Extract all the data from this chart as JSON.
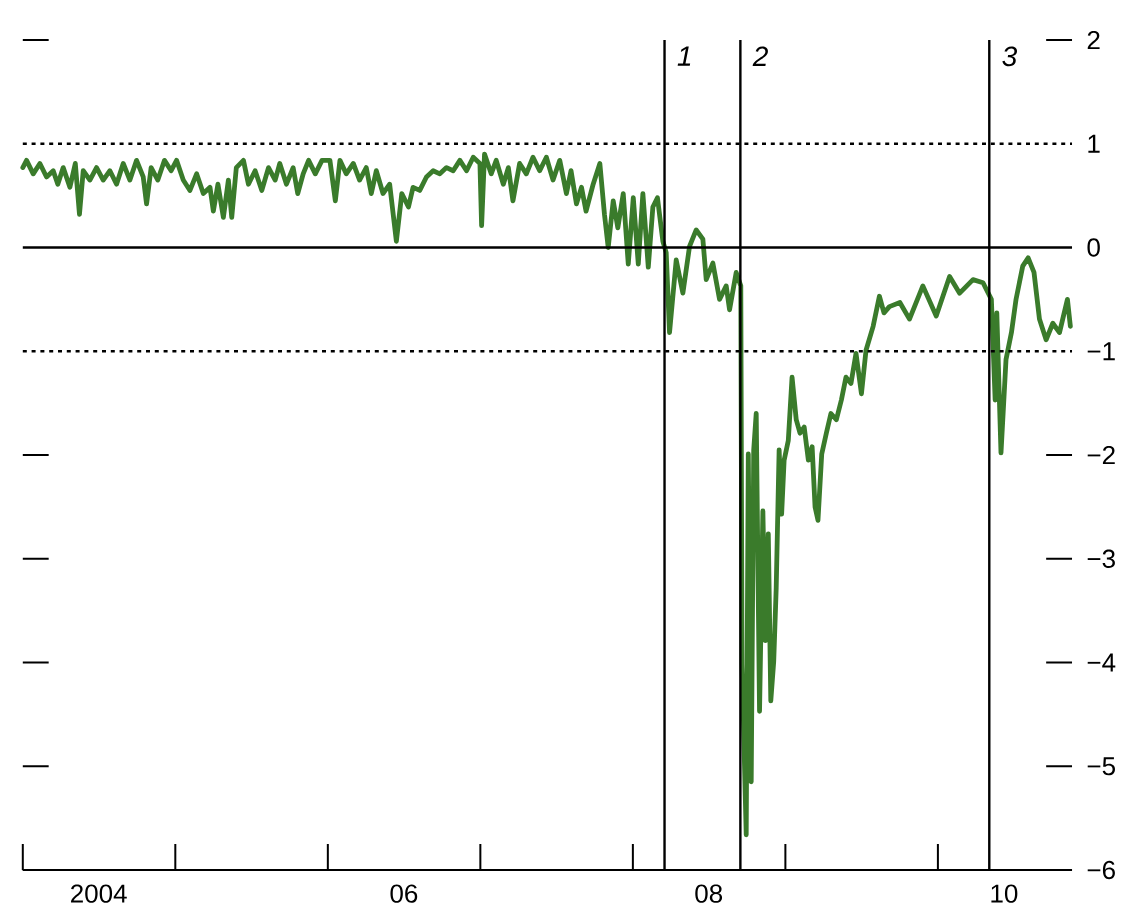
{
  "chart_data": {
    "type": "line",
    "color": "#3a7b2b",
    "x": [
      "2004-01-01",
      "2004-01-10",
      "2004-01-26",
      "2004-02-11",
      "2004-02-27",
      "2004-03-14",
      "2004-03-25",
      "2004-04-07",
      "2004-04-23",
      "2004-05-06",
      "2004-05-16",
      "2004-05-25",
      "2004-06-10",
      "2004-06-26",
      "2004-07-12",
      "2004-07-28",
      "2004-08-13",
      "2004-08-29",
      "2004-09-14",
      "2004-09-30",
      "2004-10-16",
      "2004-10-24",
      "2004-11-04",
      "2004-11-20",
      "2004-12-06",
      "2004-12-22",
      "2005-01-04",
      "2005-01-20",
      "2005-02-05",
      "2005-02-21",
      "2005-03-09",
      "2005-03-25",
      "2005-04-02",
      "2005-04-13",
      "2005-04-26",
      "2005-05-08",
      "2005-05-16",
      "2005-05-27",
      "2005-06-13",
      "2005-06-25",
      "2005-07-11",
      "2005-07-27",
      "2005-08-12",
      "2005-08-28",
      "2005-09-08",
      "2005-09-24",
      "2005-10-10",
      "2005-10-21",
      "2005-11-03",
      "2005-11-16",
      "2005-12-02",
      "2005-12-18",
      "2006-01-06",
      "2006-01-19",
      "2006-01-30",
      "2006-02-14",
      "2006-03-03",
      "2006-03-18",
      "2006-04-03",
      "2006-04-15",
      "2006-04-27",
      "2006-05-13",
      "2006-05-29",
      "2006-06-14",
      "2006-06-27",
      "2006-07-13",
      "2006-07-24",
      "2006-08-09",
      "2006-08-25",
      "2006-09-10",
      "2006-09-26",
      "2006-10-12",
      "2006-10-28",
      "2006-11-13",
      "2006-11-29",
      "2006-12-15",
      "2006-12-31",
      "2007-01-04",
      "2007-01-11",
      "2007-01-27",
      "2007-02-08",
      "2007-02-25",
      "2007-03-09",
      "2007-03-20",
      "2007-04-05",
      "2007-04-21",
      "2007-05-07",
      "2007-05-23",
      "2007-06-08",
      "2007-06-24",
      "2007-07-10",
      "2007-07-26",
      "2007-08-06",
      "2007-08-19",
      "2007-08-31",
      "2007-09-11",
      "2007-09-28",
      "2007-10-14",
      "2007-10-25",
      "2007-11-03",
      "2007-11-15",
      "2007-11-26",
      "2007-12-09",
      "2007-12-21",
      "2008-01-02",
      "2008-01-14",
      "2008-01-25",
      "2008-02-07",
      "2008-02-18",
      "2008-02-29",
      "2008-03-13",
      "2008-03-21",
      "2008-03-29",
      "2008-04-14",
      "2008-04-30",
      "2008-05-16",
      "2008-06-01",
      "2008-06-17",
      "2008-06-25",
      "2008-07-11",
      "2008-07-27",
      "2008-08-12",
      "2008-08-20",
      "2008-09-05",
      "2008-09-16",
      "2008-09-19",
      "2008-09-29",
      "2008-10-04",
      "2008-10-11",
      "2008-10-17",
      "2008-10-23",
      "2008-10-31",
      "2008-11-08",
      "2008-11-14",
      "2008-11-21",
      "2008-11-27",
      "2008-12-04",
      "2008-12-10",
      "2008-12-17",
      "2008-12-23",
      "2008-12-29",
      "2009-01-08",
      "2009-01-17",
      "2009-01-27",
      "2009-02-05",
      "2009-02-15",
      "2009-02-25",
      "2009-03-06",
      "2009-03-13",
      "2009-03-20",
      "2009-03-29",
      "2009-04-09",
      "2009-04-20",
      "2009-05-03",
      "2009-05-15",
      "2009-05-26",
      "2009-06-07",
      "2009-06-19",
      "2009-07-02",
      "2009-07-13",
      "2009-07-30",
      "2009-08-14",
      "2009-08-25",
      "2009-09-07",
      "2009-10-02",
      "2009-10-25",
      "2009-11-26",
      "2009-12-28",
      "2010-01-29",
      "2010-02-22",
      "2010-03-26",
      "2010-04-19",
      "2010-05-09",
      "2010-05-18",
      "2010-05-22",
      "2010-06-01",
      "2010-06-13",
      "2010-06-26",
      "2010-07-07",
      "2010-07-23",
      "2010-08-05",
      "2010-08-19",
      "2010-09-01",
      "2010-09-17",
      "2010-10-03",
      "2010-10-19",
      "2010-11-07",
      "2010-11-14"
    ],
    "values": [
      0.77,
      0.84,
      0.71,
      0.81,
      0.68,
      0.74,
      0.61,
      0.77,
      0.58,
      0.81,
      0.32,
      0.74,
      0.65,
      0.77,
      0.65,
      0.74,
      0.61,
      0.81,
      0.65,
      0.84,
      0.68,
      0.42,
      0.77,
      0.65,
      0.84,
      0.74,
      0.84,
      0.65,
      0.55,
      0.71,
      0.52,
      0.58,
      0.35,
      0.61,
      0.29,
      0.65,
      0.29,
      0.77,
      0.84,
      0.61,
      0.74,
      0.55,
      0.77,
      0.65,
      0.81,
      0.61,
      0.77,
      0.52,
      0.71,
      0.84,
      0.71,
      0.84,
      0.84,
      0.45,
      0.84,
      0.71,
      0.81,
      0.65,
      0.77,
      0.52,
      0.74,
      0.52,
      0.61,
      0.06,
      0.52,
      0.39,
      0.58,
      0.55,
      0.68,
      0.74,
      0.71,
      0.77,
      0.74,
      0.84,
      0.74,
      0.87,
      0.81,
      0.21,
      0.9,
      0.71,
      0.84,
      0.61,
      0.77,
      0.45,
      0.81,
      0.71,
      0.87,
      0.74,
      0.87,
      0.65,
      0.84,
      0.52,
      0.74,
      0.42,
      0.58,
      0.35,
      0.61,
      0.81,
      0.32,
      0.0,
      0.45,
      0.19,
      0.52,
      -0.16,
      0.48,
      -0.16,
      0.52,
      -0.19,
      0.39,
      0.48,
      0.06,
      -0.05,
      -0.82,
      -0.12,
      -0.44,
      0.01,
      0.17,
      0.08,
      -0.31,
      -0.15,
      -0.5,
      -0.37,
      -0.6,
      -0.24,
      -0.37,
      -4.02,
      -5.66,
      -1.99,
      -5.15,
      -1.95,
      -1.6,
      -4.47,
      -2.54,
      -3.79,
      -2.76,
      -4.37,
      -3.99,
      -3.28,
      -1.95,
      -2.57,
      -2.05,
      -1.86,
      -1.25,
      -1.66,
      -1.79,
      -1.73,
      -2.05,
      -1.92,
      -2.5,
      -2.63,
      -1.99,
      -1.79,
      -1.6,
      -1.66,
      -1.47,
      -1.25,
      -1.31,
      -1.02,
      -1.41,
      -0.99,
      -0.76,
      -0.47,
      -0.63,
      -0.57,
      -0.53,
      -0.69,
      -0.37,
      -0.66,
      -0.28,
      -0.44,
      -0.31,
      -0.34,
      -0.5,
      -1.47,
      -0.63,
      -1.98,
      -1.08,
      -0.82,
      -0.5,
      -0.18,
      -0.1,
      -0.24,
      -0.69,
      -0.89,
      -0.73,
      -0.82,
      -0.5,
      -0.76
    ],
    "xlim": [
      "2004-01-01",
      "2010-11-18"
    ],
    "xticks": [
      {
        "value": "2004-01-01",
        "label": null
      },
      {
        "value": "2004-07-01",
        "label": "2004"
      },
      {
        "value": "2005-01-01",
        "label": null
      },
      {
        "value": "2006-01-01",
        "label": null
      },
      {
        "value": "2006-07-02",
        "label": "06"
      },
      {
        "value": "2007-01-01",
        "label": null
      },
      {
        "value": "2008-01-01",
        "label": null
      },
      {
        "value": "2008-07-01",
        "label": "08"
      },
      {
        "value": "2009-01-01",
        "label": null
      },
      {
        "value": "2010-01-01",
        "label": null
      },
      {
        "value": "2010-06-08",
        "label": "10"
      }
    ],
    "ylim": [
      -6,
      2
    ],
    "yticks": [
      {
        "value": -6,
        "label": "−6"
      },
      {
        "value": -5,
        "label": "−5"
      },
      {
        "value": -4,
        "label": "−4"
      },
      {
        "value": -3,
        "label": "−3"
      },
      {
        "value": -2,
        "label": "−2"
      },
      {
        "value": -1,
        "label": "−1"
      },
      0,
      1,
      2
    ],
    "ref_lines": [
      {
        "axis": "y",
        "value": 1,
        "line_style": "dotted",
        "color": "#000000"
      },
      {
        "axis": "y",
        "value": 0,
        "line_style": "solid",
        "color": "#000000"
      },
      {
        "axis": "y",
        "value": -1,
        "line_style": "dotted",
        "color": "#000000"
      },
      {
        "axis": "x",
        "value": "2008-03-17",
        "label": "1",
        "line_style": "solid",
        "color": "#000000"
      },
      {
        "axis": "x",
        "value": "2008-09-15",
        "label": "2",
        "line_style": "solid",
        "color": "#000000"
      },
      {
        "axis": "x",
        "value": "2010-05-04",
        "label": "3",
        "line_style": "solid",
        "color": "#000000"
      }
    ]
  }
}
